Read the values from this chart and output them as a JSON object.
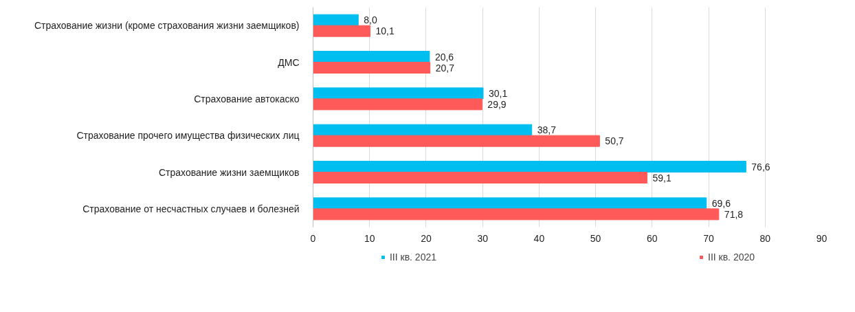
{
  "chart_data": {
    "type": "bar",
    "orientation": "horizontal",
    "categories": [
      "Страхование жизни (кроме страхования жизни заемщиков)",
      "ДМС",
      "Страхование автокаско",
      "Страхование прочего имущества физических лиц",
      "Страхование жизни заемщиков",
      "Страхование от несчастных случаев и болезней"
    ],
    "series": [
      {
        "name": "III кв. 2021",
        "color": "#00bff0",
        "values": [
          8.0,
          20.6,
          30.1,
          38.7,
          76.6,
          69.6
        ],
        "value_labels": [
          "8,0",
          "20,6",
          "30,1",
          "38,7",
          "76,6",
          "69,6"
        ]
      },
      {
        "name": "III кв. 2020",
        "color": "#ff5a5a",
        "values": [
          10.1,
          20.7,
          29.9,
          50.7,
          59.1,
          71.8
        ],
        "value_labels": [
          "10,1",
          "20,7",
          "29,9",
          "50,7",
          "59,1",
          "71,8"
        ]
      }
    ],
    "xlim": [
      0,
      90
    ],
    "xticks": [
      0,
      10,
      20,
      30,
      40,
      50,
      60,
      70,
      80,
      90
    ],
    "grid": "x",
    "legend": "bottom"
  }
}
